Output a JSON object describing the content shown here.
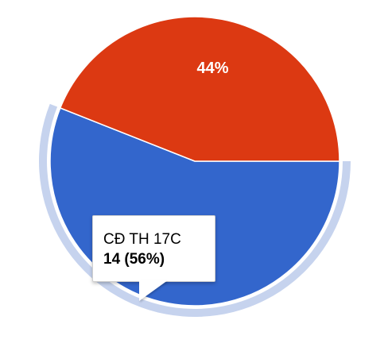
{
  "chart_data": {
    "type": "pie",
    "slices": [
      {
        "label": "CĐ TH 17C",
        "value": 14,
        "percent_label": "56%",
        "color": "#3366cc"
      },
      {
        "label": "",
        "value": 11,
        "percent_label": "44%",
        "color": "#dc3912"
      }
    ],
    "highlighted_slice": 0,
    "highlight_color": "#c6d3ee"
  },
  "tooltip": {
    "title": "CĐ TH 17C",
    "value_text": "14 (56%)"
  }
}
